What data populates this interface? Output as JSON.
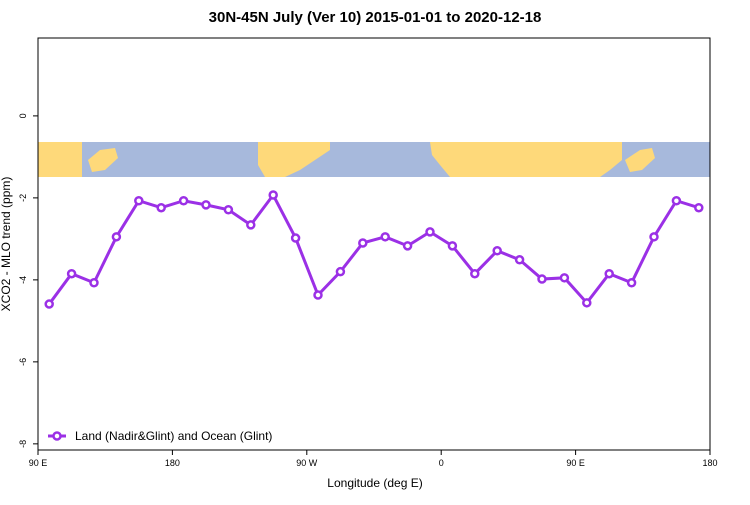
{
  "chart_data": {
    "type": "line",
    "title": "30N-45N July (Ver 10)   2015-01-01 to 2020-12-18",
    "xlabel": "Longitude (deg E)",
    "ylabel": "XCO2 - MLO trend (ppm)",
    "x": [
      97.5,
      112.5,
      127.5,
      142.5,
      157.5,
      172.5,
      187.5,
      202.5,
      217.5,
      232.5,
      247.5,
      262.5,
      277.5,
      292.5,
      307.5,
      322.5,
      337.5,
      352.5,
      367.5,
      382.5,
      397.5,
      412.5,
      427.5,
      442.5,
      457.5,
      472.5,
      487.5,
      502.5,
      517.5,
      532.5
    ],
    "series": [
      {
        "name": "Land (Nadir&Glint) and Ocean (Glint)",
        "color": "#9b30e6",
        "values": [
          -4.59,
          -3.85,
          -4.07,
          -2.95,
          -2.07,
          -2.24,
          -2.07,
          -2.17,
          -2.29,
          -2.66,
          -1.93,
          -2.98,
          -4.37,
          -3.8,
          -3.1,
          -2.95,
          -3.17,
          -2.83,
          -3.17,
          -3.85,
          -3.29,
          -3.51,
          -3.98,
          -3.95,
          -4.56,
          -3.85,
          -4.07,
          -2.95,
          -2.07,
          -2.24
        ]
      }
    ],
    "xlim": [
      90,
      540
    ],
    "xticks": [
      {
        "value": 90,
        "label": "90 E"
      },
      {
        "value": 180,
        "label": "180"
      },
      {
        "value": 270,
        "label": "90 W"
      },
      {
        "value": 360,
        "label": "0"
      },
      {
        "value": 450,
        "label": "90 E"
      },
      {
        "value": 540,
        "label": "180"
      }
    ],
    "ylim": [
      -8.15,
      1.9
    ],
    "yticks": [
      0,
      -2,
      -4,
      -6,
      -8
    ],
    "legend": "lower left"
  }
}
